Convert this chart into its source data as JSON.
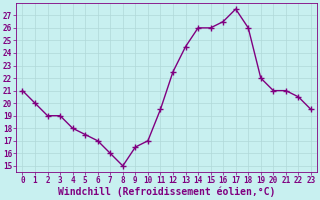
{
  "x": [
    0,
    1,
    2,
    3,
    4,
    5,
    6,
    7,
    8,
    9,
    10,
    11,
    12,
    13,
    14,
    15,
    16,
    17,
    18,
    19,
    20,
    21,
    22,
    23
  ],
  "y": [
    21,
    20,
    19,
    19,
    18,
    17.5,
    17,
    16,
    15,
    16.5,
    17,
    19.5,
    22.5,
    24.5,
    26,
    26,
    26.5,
    27.5,
    26,
    22,
    21,
    21,
    20.5,
    19.5
  ],
  "line_color": "#800080",
  "marker": "+",
  "marker_size": 4,
  "bg_color": "#c8f0f0",
  "grid_color": "#b0d8d8",
  "xlabel": "Windchill (Refroidissement éolien,°C)",
  "xlabel_color": "#800080",
  "ylim_min": 14.5,
  "ylim_max": 28.0,
  "xlim_min": -0.5,
  "xlim_max": 23.5,
  "yticks": [
    15,
    16,
    17,
    18,
    19,
    20,
    21,
    22,
    23,
    24,
    25,
    26,
    27
  ],
  "xticks": [
    0,
    1,
    2,
    3,
    4,
    5,
    6,
    7,
    8,
    9,
    10,
    11,
    12,
    13,
    14,
    15,
    16,
    17,
    18,
    19,
    20,
    21,
    22,
    23
  ],
  "tick_color": "#800080",
  "tick_label_fontsize": 5.5,
  "xlabel_fontsize": 7.0,
  "line_width": 1.0,
  "marker_edge_width": 1.0
}
